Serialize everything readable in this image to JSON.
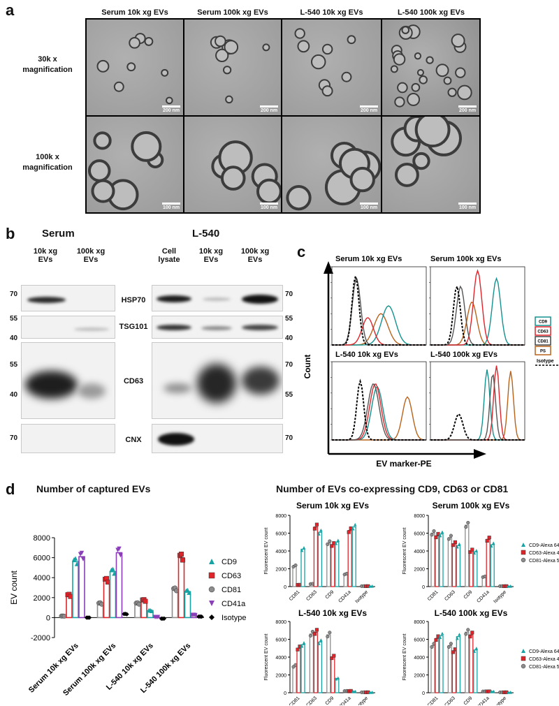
{
  "panel_a": {
    "letter": "a",
    "column_headers": [
      "Serum 10k xg EVs",
      "Serum 100k xg  EVs",
      "L-540 10k xg  EVs",
      "L-540 100k xg  EVs"
    ],
    "row_labels": [
      "30k x magnification",
      "100k x magnification"
    ],
    "scale_labels_row1": [
      "200 nm",
      "200 nm",
      "200 nm",
      "200 nm"
    ],
    "scale_labels_row2": [
      "100 nm",
      "100 nm",
      "100 nm",
      "100 nm"
    ]
  },
  "panel_b": {
    "letter": "b",
    "serum_title": "Serum",
    "l540_title": "L-540",
    "serum_lanes": [
      "10k xg EVs",
      "100k xg EVs"
    ],
    "l540_lanes": [
      "Cell lysate",
      "10k xg EVs",
      "100k xg EVs"
    ],
    "markers": [
      "HSP70",
      "TSG101",
      "CD63",
      "CNX"
    ],
    "mw_left": [
      "70",
      "55",
      "40",
      "55",
      "40",
      "70"
    ],
    "mw_right": [
      "70",
      "55",
      "40",
      "70",
      "55",
      "70"
    ]
  },
  "panel_c": {
    "letter": "c",
    "y_label": "Count",
    "x_label": "EV marker-PE",
    "titles": [
      "Serum 10k xg  EVs",
      "Serum 100k xg  EVs",
      "L-540 10k xg  EVs",
      "L-540 100k xg  EVs"
    ],
    "legend": [
      {
        "label": "CD9",
        "color": "#13928f"
      },
      {
        "label": "CD63",
        "color": "#e0242a"
      },
      {
        "label": "CD81",
        "color": "#444444"
      },
      {
        "label": "PS",
        "color": "#b8621a"
      },
      {
        "label": "Isotype",
        "color": "#000000"
      }
    ]
  },
  "panel_d": {
    "letter": "d",
    "left_title": "Number of captured EVs",
    "right_title": "Number of EVs co-expressing  CD9, CD63 or CD81",
    "legend_left": [
      {
        "label": "CD9",
        "color": "#17a3a3",
        "marker": "triangle-up"
      },
      {
        "label": "CD63",
        "color": "#e0242a",
        "marker": "square"
      },
      {
        "label": "CD81",
        "color": "#8c8c8c",
        "marker": "circle"
      },
      {
        "label": "CD41a",
        "color": "#8a3fb8",
        "marker": "triangle-down"
      },
      {
        "label": "Isotype",
        "color": "#000000",
        "marker": "diamond"
      }
    ],
    "legend_right": [
      {
        "label": "CD9-Alexa 647",
        "color": "#17a3a3"
      },
      {
        "label": "CD63-Alexa 488",
        "color": "#e0242a"
      },
      {
        "label": "CD81-Alexa 555",
        "color": "#8c8c8c"
      }
    ]
  },
  "chart_data": [
    {
      "type": "bar",
      "title": "Number of captured EVs",
      "ylabel": "EV count",
      "ylim": [
        -2000,
        8000
      ],
      "yticks": [
        -2000,
        0,
        2000,
        4000,
        6000,
        8000
      ],
      "categories": [
        "Serum 10k xg EVs",
        "Serum 100k xg EVs",
        "L-540 10k xg EVs",
        "L-540 100k xg EVs"
      ],
      "series": [
        {
          "name": "CD81",
          "values": [
            150,
            1400,
            1400,
            2800
          ]
        },
        {
          "name": "CD63",
          "values": [
            2200,
            3700,
            1700,
            6000
          ]
        },
        {
          "name": "CD9",
          "values": [
            5600,
            4600,
            700,
            2600
          ]
        },
        {
          "name": "CD41a",
          "values": [
            6100,
            6500,
            50,
            250
          ]
        },
        {
          "name": "Isotype",
          "values": [
            0,
            350,
            -100,
            100
          ]
        }
      ]
    },
    {
      "type": "bar",
      "title": "Serum 10k xg   EVs",
      "ylabel": "Fluorescent EV count",
      "ylim": [
        0,
        8000
      ],
      "yticks": [
        0,
        2000,
        4000,
        6000,
        8000
      ],
      "categories": [
        "CD81",
        "CD63",
        "CD9",
        "CD41a",
        "Isotype"
      ],
      "series": [
        {
          "name": "CD81-Alexa 555",
          "values": [
            2300,
            300,
            4900,
            1400,
            50
          ]
        },
        {
          "name": "CD63-Alexa 488",
          "values": [
            200,
            6700,
            4700,
            6300,
            50
          ]
        },
        {
          "name": "CD9-Alexa 647",
          "values": [
            4200,
            6100,
            5000,
            6700,
            50
          ]
        }
      ]
    },
    {
      "type": "bar",
      "title": "Serum 100k xg   EVs",
      "ylabel": "Fluorescent EV count",
      "ylim": [
        0,
        8000
      ],
      "yticks": [
        0,
        2000,
        4000,
        6000,
        8000
      ],
      "categories": [
        "CD81",
        "CD63",
        "CD9",
        "CD41a",
        "Isotype"
      ],
      "series": [
        {
          "name": "CD81-Alexa 555",
          "values": [
            6000,
            5500,
            6900,
            1100,
            50
          ]
        },
        {
          "name": "CD63-Alexa 488",
          "values": [
            5700,
            4800,
            4000,
            5300,
            50
          ]
        },
        {
          "name": "CD9-Alexa 647",
          "values": [
            5900,
            4600,
            3900,
            4700,
            50
          ]
        }
      ]
    },
    {
      "type": "bar",
      "title": "L-540 10k xg   EVs",
      "ylabel": "Fluorescent EV count",
      "ylim": [
        0,
        8000
      ],
      "yticks": [
        0,
        2000,
        4000,
        6000,
        8000
      ],
      "categories": [
        "CD81",
        "CD63",
        "CD9",
        "CD41a",
        "Isotype"
      ],
      "series": [
        {
          "name": "CD81-Alexa 555",
          "values": [
            3000,
            6600,
            6500,
            200,
            50
          ]
        },
        {
          "name": "CD63-Alexa 488",
          "values": [
            5000,
            6800,
            4000,
            200,
            50
          ]
        },
        {
          "name": "CD9-Alexa 647",
          "values": [
            5400,
            5700,
            1600,
            150,
            50
          ]
        }
      ]
    },
    {
      "type": "bar",
      "title": "L-540 100k xg   EVs",
      "ylabel": "Fluorescent EV count",
      "ylim": [
        0,
        8000
      ],
      "yticks": [
        0,
        2000,
        4000,
        6000,
        8000
      ],
      "categories": [
        "CD81",
        "CD63",
        "CD9",
        "CD41a",
        "Isotype"
      ],
      "series": [
        {
          "name": "CD81-Alexa 555",
          "values": [
            5300,
            5300,
            6800,
            150,
            50
          ]
        },
        {
          "name": "CD63-Alexa 488",
          "values": [
            6100,
            4700,
            6500,
            150,
            50
          ]
        },
        {
          "name": "CD9-Alexa 647",
          "values": [
            6400,
            6300,
            4800,
            150,
            50
          ]
        }
      ]
    }
  ]
}
